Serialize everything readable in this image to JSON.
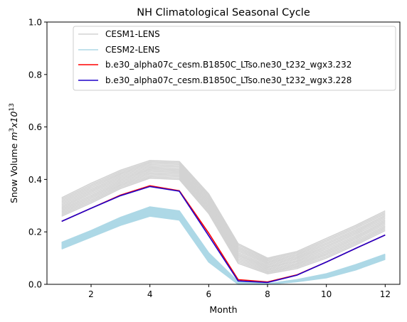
{
  "chart_data": {
    "type": "line",
    "title": "NH Climatological Seasonal Cycle",
    "xlabel": "Month",
    "ylabel": "Snow Volume m³x10¹³",
    "ylabel_parts": {
      "text": "Snow Volume ",
      "unit": "m",
      "unit_sup": "3",
      "mid": "x10",
      "exp": "13"
    },
    "xlim": [
      0.5,
      12.5
    ],
    "ylim": [
      0.0,
      1.0
    ],
    "x_ticks": [
      "2",
      "4",
      "6",
      "8",
      "10",
      "12"
    ],
    "y_ticks": [
      "0.0",
      "0.2",
      "0.4",
      "0.6",
      "0.8",
      "1.0"
    ],
    "grid": false,
    "legend_position": "top-right",
    "x": [
      1,
      2,
      3,
      4,
      5,
      6,
      7,
      8,
      9,
      10,
      11,
      12
    ],
    "series": [
      {
        "name": "CESM1-LENS",
        "color": "#d3d3d3",
        "ensemble": true,
        "lower": [
          0.26,
          0.31,
          0.365,
          0.405,
          0.4,
          0.27,
          0.08,
          0.04,
          0.06,
          0.1,
          0.15,
          0.205
        ],
        "upper": [
          0.33,
          0.385,
          0.435,
          0.472,
          0.468,
          0.345,
          0.155,
          0.1,
          0.125,
          0.175,
          0.225,
          0.28
        ],
        "values": [
          0.295,
          0.345,
          0.4,
          0.44,
          0.435,
          0.31,
          0.12,
          0.07,
          0.095,
          0.14,
          0.19,
          0.245
        ]
      },
      {
        "name": "CESM2-LENS",
        "color": "#add8e6",
        "ensemble": true,
        "lower": [
          0.135,
          0.18,
          0.225,
          0.26,
          0.245,
          0.085,
          0.0,
          0.0,
          0.01,
          0.025,
          0.055,
          0.095
        ],
        "upper": [
          0.16,
          0.205,
          0.255,
          0.295,
          0.28,
          0.12,
          0.01,
          0.002,
          0.018,
          0.04,
          0.075,
          0.115
        ],
        "values": [
          0.148,
          0.192,
          0.24,
          0.278,
          0.262,
          0.1,
          0.004,
          0.001,
          0.014,
          0.032,
          0.065,
          0.105
        ]
      },
      {
        "name": "b.e30_alpha07c_cesm.B1850C_LTso.ne30_t232_wgx3.232",
        "color": "#ff0000",
        "values": [
          0.24,
          0.29,
          0.34,
          0.376,
          0.357,
          0.195,
          0.018,
          0.009,
          0.036,
          0.085,
          0.137,
          0.188
        ]
      },
      {
        "name": "b.e30_alpha07c_cesm.B1850C_LTso.ne30_t232_wgx3.228",
        "color": "#1f00c8",
        "values": [
          0.24,
          0.29,
          0.338,
          0.373,
          0.355,
          0.185,
          0.013,
          0.007,
          0.035,
          0.085,
          0.137,
          0.188
        ]
      }
    ]
  }
}
